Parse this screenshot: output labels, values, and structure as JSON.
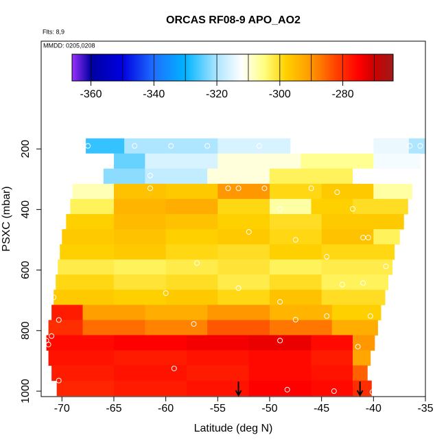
{
  "chart_data": {
    "type": "curtain",
    "title": "ORCAS RF08-9 APO_AO2",
    "flights": "Flts: 8,9",
    "dates": "MMDD: 0205,0208",
    "xlabel": "Latitude (deg N)",
    "ylabel": "PSXC (mbar)",
    "xlim": [
      -72,
      -35
    ],
    "ylim": [
      1018,
      -156
    ],
    "xticks": [
      -70,
      -65,
      -60,
      -55,
      -50,
      -45,
      -40,
      -35
    ],
    "yticks": [
      200,
      400,
      600,
      800,
      1000
    ],
    "colorscale": [
      [
        -366,
        "#9b30ff"
      ],
      [
        -360,
        "#0000a0"
      ],
      [
        -350,
        "#0000e0"
      ],
      [
        -340,
        "#1e6fff"
      ],
      [
        -330,
        "#00b4ff"
      ],
      [
        -320,
        "#aee6ff"
      ],
      [
        -312,
        "#ffffff"
      ],
      [
        -305,
        "#ffff80"
      ],
      [
        -298,
        "#ffd000"
      ],
      [
        -290,
        "#ff9800"
      ],
      [
        -282,
        "#ff4000"
      ],
      [
        -275,
        "#ff0000"
      ],
      [
        -270,
        "#cc0000"
      ],
      [
        -264,
        "#a01a1a"
      ]
    ],
    "colorbar_ticks": [
      -360,
      -340,
      -320,
      -300,
      -280
    ],
    "colorbar_breaks": [
      -360,
      -350,
      -340,
      -330,
      -320,
      -310,
      -300,
      -290,
      -280,
      -270
    ],
    "rows": [
      {
        "p": [
          165,
          215
        ],
        "edges": [
          -67.7,
          -64,
          -55,
          -48,
          -40,
          -36.6,
          -35
        ],
        "values": [
          -327,
          -320,
          -316,
          -312,
          -314,
          -320
        ]
      },
      {
        "p": [
          215,
          265
        ],
        "edges": [
          -68,
          -65,
          -62,
          -55,
          -47,
          -40,
          -35.5
        ],
        "values": [
          -312,
          -324,
          -316,
          -310,
          -306,
          -313
        ]
      },
      {
        "p": [
          265,
          315
        ],
        "edges": [
          -68.3,
          -66,
          -62,
          -56,
          -50,
          -42,
          -35.8
        ],
        "values": [
          -312,
          -322,
          -318,
          -310,
          -303,
          -312
        ]
      },
      {
        "p": [
          315,
          365
        ],
        "edges": [
          -69,
          -65,
          -60,
          -55,
          -50,
          -45,
          -40,
          -36.3
        ],
        "values": [
          -308,
          -296,
          -297,
          -290,
          -299,
          -297,
          -307
        ]
      },
      {
        "p": [
          365,
          415
        ],
        "edges": [
          -69.2,
          -65,
          -60,
          -55,
          -50,
          -46,
          -42,
          -36.7
        ],
        "values": [
          -303,
          -294,
          -293,
          -299,
          -307,
          -298,
          -300
        ]
      },
      {
        "p": [
          415,
          465
        ],
        "edges": [
          -69.6,
          -65,
          -60,
          -55,
          -50,
          -45,
          -37.1
        ],
        "values": [
          -298,
          -295,
          -296,
          -298,
          -300,
          -297
        ]
      },
      {
        "p": [
          465,
          515
        ],
        "edges": [
          -70,
          -65,
          -60,
          -55,
          -50,
          -45,
          -40,
          -37.5
        ],
        "values": [
          -297,
          -296,
          -298,
          -297,
          -299,
          -296,
          -303
        ]
      },
      {
        "p": [
          515,
          565
        ],
        "edges": [
          -70.2,
          -65,
          -60,
          -55,
          -50,
          -45,
          -38
        ],
        "values": [
          -298,
          -297,
          -299,
          -300,
          -298,
          -299
        ]
      },
      {
        "p": [
          565,
          615
        ],
        "edges": [
          -70.4,
          -65,
          -60,
          -55,
          -50,
          -45,
          -38.2
        ],
        "values": [
          -302,
          -303,
          -302,
          -301,
          -303,
          -302
        ]
      },
      {
        "p": [
          615,
          665
        ],
        "edges": [
          -70.6,
          -65,
          -60,
          -55,
          -50,
          -45,
          -38.6
        ],
        "values": [
          -299,
          -301,
          -300,
          -302,
          -300,
          -303
        ]
      },
      {
        "p": [
          665,
          715
        ],
        "edges": [
          -70.8,
          -65,
          -60,
          -55,
          -50,
          -45,
          -38.9
        ],
        "values": [
          -297,
          -298,
          -297,
          -299,
          -296,
          -300
        ]
      },
      {
        "p": [
          715,
          765
        ],
        "edges": [
          -71,
          -68,
          -62,
          -56,
          -50,
          -44,
          -39.3
        ],
        "values": [
          -278,
          -291,
          -293,
          -290,
          -294,
          -298
        ]
      },
      {
        "p": [
          765,
          815
        ],
        "edges": [
          -71.3,
          -68,
          -62,
          -56,
          -50,
          -44,
          -39.6
        ],
        "values": [
          -280,
          -286,
          -288,
          -284,
          -287,
          -293
        ]
      },
      {
        "p": [
          815,
          865
        ],
        "edges": [
          -71.5,
          -65,
          -58,
          -52,
          -46,
          -42,
          -39.9
        ],
        "values": [
          -276,
          -275,
          -274,
          -273,
          -276,
          -290
        ]
      },
      {
        "p": [
          865,
          915
        ],
        "edges": [
          -71.3,
          -65,
          -58,
          -52,
          -46,
          -42,
          -40.3
        ],
        "values": [
          -277,
          -278,
          -277,
          -276,
          -278,
          -292
        ]
      },
      {
        "p": [
          915,
          965
        ],
        "edges": [
          -71,
          -65,
          -58,
          -52,
          -46,
          -42,
          -40.6
        ],
        "values": [
          -278,
          -277,
          -278,
          -276,
          -277,
          -285
        ]
      },
      {
        "p": [
          965,
          1015
        ],
        "edges": [
          -70.5,
          -65,
          -58,
          -52,
          -46,
          -42,
          -40.2
        ],
        "values": [
          -279,
          -278,
          -277,
          -275,
          -276,
          -280
        ]
      }
    ],
    "points": {
      "lat": [
        -67.5,
        -63,
        -59.5,
        -56,
        -51,
        -36.5,
        -35.5,
        -61.5,
        -61.5,
        -54,
        -53,
        -50.5,
        -46,
        -43.5,
        -49,
        -42,
        -70.3,
        -52,
        -47.5,
        -41,
        -40.5,
        -44.5,
        -70.9,
        -57,
        -38.8,
        -60,
        -53,
        -43,
        -41,
        -70.8,
        -49,
        -44.5,
        -40.3,
        -70.3,
        -57.3,
        -47.5,
        -71,
        -71.5,
        -71.3,
        -49,
        -41.5,
        -59.2,
        -71.5,
        -70.3,
        -48.3,
        -43.8,
        -40.1
      ],
      "p": [
        190,
        190,
        190,
        190,
        190,
        190,
        190,
        288,
        330,
        330,
        330,
        330,
        330,
        343,
        398,
        398,
        470,
        474,
        500,
        493,
        493,
        556,
        578,
        577,
        588,
        676,
        660,
        648,
        643,
        690,
        705,
        752,
        752,
        765,
        778,
        764,
        818,
        833,
        846,
        833,
        853,
        925,
        955,
        965,
        995,
        1000,
        1003
      ]
    },
    "arrows": [
      -53,
      -41.3
    ]
  }
}
